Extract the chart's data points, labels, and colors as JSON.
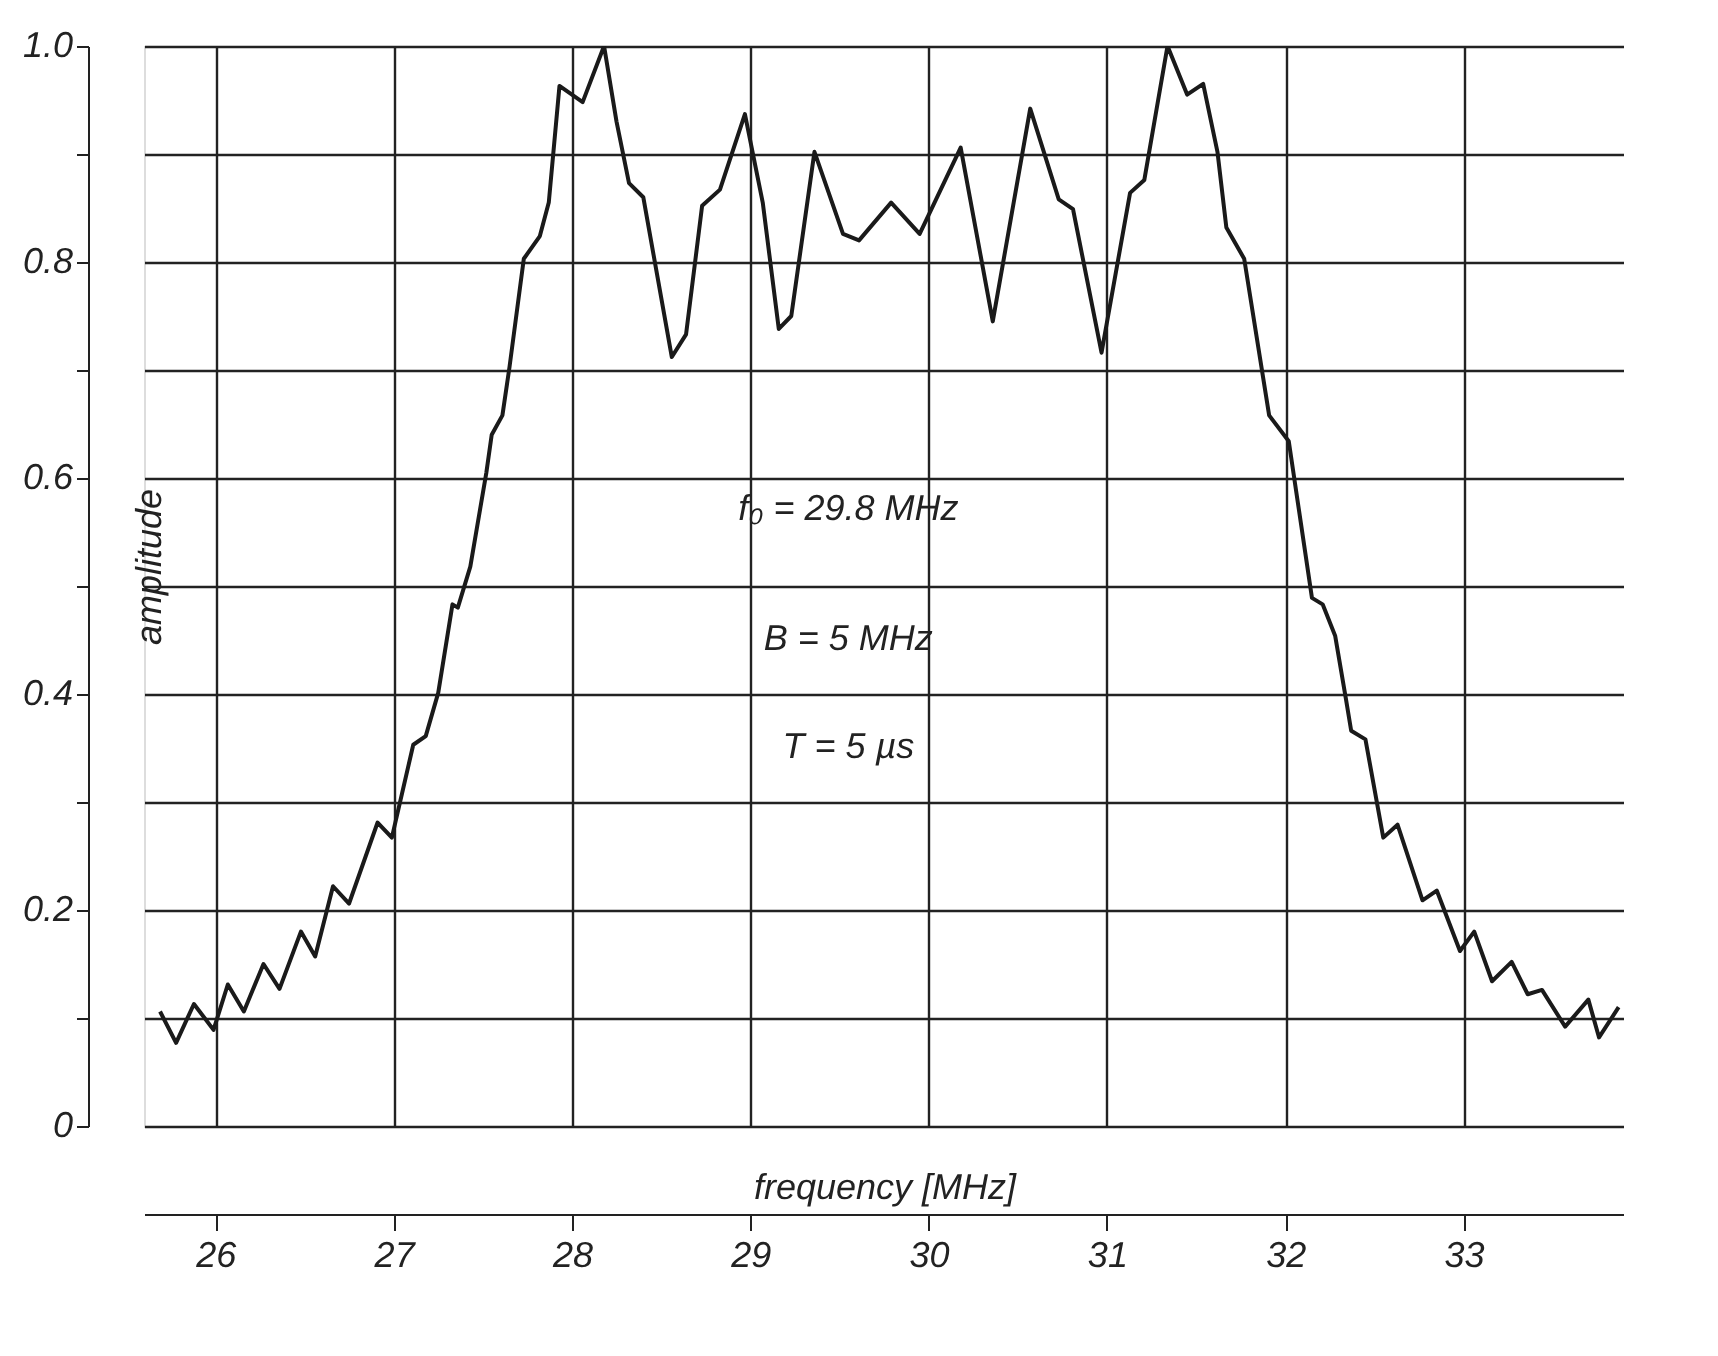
{
  "chart_data": {
    "type": "line",
    "xlabel": "frequency  [MHz]",
    "ylabel": "amplitude",
    "annotations": [
      "f₀ = 29.8 MHz",
      "B = 5 MHz",
      "T = 5 µs"
    ],
    "series": [
      {
        "color": "#1a1a1a",
        "x": [
          25.69,
          25.78,
          25.88,
          25.99,
          26.07,
          26.16,
          26.27,
          26.36,
          26.48,
          26.56,
          26.66,
          26.75,
          26.91,
          26.99,
          27.11,
          27.18,
          27.25,
          27.33,
          27.36,
          27.43,
          27.52,
          27.55,
          27.61,
          27.65,
          27.73,
          27.82,
          27.87,
          27.93,
          28.06,
          28.18,
          28.25,
          28.32,
          28.4,
          28.56,
          28.64,
          28.73,
          28.83,
          28.97,
          29.07,
          29.16,
          29.23,
          29.36,
          29.52,
          29.61,
          29.79,
          29.95,
          30.18,
          30.36,
          30.57,
          30.73,
          30.81,
          30.97,
          31.13,
          31.21,
          31.34,
          31.45,
          31.54,
          31.62,
          31.67,
          31.77,
          31.91,
          32.02,
          32.15,
          32.21,
          32.28,
          32.34,
          32.37,
          32.45,
          32.55,
          32.63,
          32.77,
          32.85,
          32.98,
          33.06,
          33.16,
          33.27,
          33.36,
          33.44,
          33.57,
          33.7,
          33.76,
          33.87
        ],
        "values": [
          0.106,
          0.077,
          0.113,
          0.089,
          0.131,
          0.106,
          0.15,
          0.127,
          0.18,
          0.157,
          0.222,
          0.206,
          0.281,
          0.267,
          0.353,
          0.361,
          0.401,
          0.483,
          0.48,
          0.518,
          0.605,
          0.64,
          0.658,
          0.703,
          0.803,
          0.824,
          0.855,
          0.963,
          0.948,
          1.0,
          0.93,
          0.873,
          0.86,
          0.712,
          0.733,
          0.852,
          0.867,
          0.937,
          0.855,
          0.738,
          0.75,
          0.902,
          0.826,
          0.82,
          0.855,
          0.826,
          0.906,
          0.745,
          0.942,
          0.858,
          0.849,
          0.716,
          0.864,
          0.876,
          1.0,
          0.955,
          0.965,
          0.902,
          0.832,
          0.803,
          0.658,
          0.634,
          0.489,
          0.483,
          0.454,
          0.396,
          0.366,
          0.358,
          0.267,
          0.279,
          0.209,
          0.218,
          0.162,
          0.18,
          0.134,
          0.152,
          0.122,
          0.126,
          0.092,
          0.117,
          0.082,
          0.11
        ]
      }
    ],
    "xlim": [
      25.6,
      33.9
    ],
    "xticks": [
      26,
      27,
      28,
      29,
      30,
      31,
      32,
      33
    ],
    "ylim": [
      0,
      1.0
    ],
    "yticks": [
      0,
      {
        "value": 0.1,
        "label": null
      },
      {
        "value": 0.2,
        "label": "0.2"
      },
      {
        "value": 0.3,
        "label": null
      },
      {
        "value": 0.4,
        "label": "0.4"
      },
      {
        "value": 0.5,
        "label": null
      },
      {
        "value": 0.6,
        "label": "0.6"
      },
      {
        "value": 0.7,
        "label": null
      },
      {
        "value": 0.8,
        "label": "0.8"
      },
      {
        "value": 0.9,
        "label": null
      },
      {
        "value": 1.0,
        "label": "1.0"
      }
    ],
    "grid": true,
    "marker": "none",
    "line_style": "solid"
  }
}
